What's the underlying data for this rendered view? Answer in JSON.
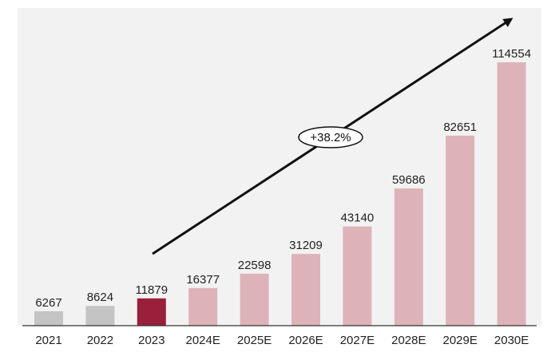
{
  "chart_data": {
    "type": "bar",
    "title": "",
    "xlabel": "",
    "ylabel": "",
    "categories": [
      "2021",
      "2022",
      "2023",
      "2024E",
      "2025E",
      "2026E",
      "2027E",
      "2028E",
      "2029E",
      "2030E"
    ],
    "values": [
      6267,
      8624,
      11879,
      16377,
      22598,
      31209,
      43140,
      59686,
      82651,
      114554
    ],
    "value_labels": [
      "6267",
      "8624",
      "11879",
      "16377",
      "22598",
      "31209",
      "43140",
      "59686",
      "82651",
      "114554"
    ],
    "ylim": [
      0,
      114554
    ],
    "grid": false,
    "legend": "none",
    "bar_colors": [
      "#c4c4c4",
      "#c4c4c4",
      "#9a1f3a",
      "#ddb3b9",
      "#ddb3b9",
      "#ddb3b9",
      "#ddb3b9",
      "#ddb3b9",
      "#ddb3b9",
      "#ddb3b9"
    ],
    "annotation": {
      "text": "+38.2%",
      "arrow": "trend arrow rising from 2023 toward upper right"
    }
  },
  "colors": {
    "background": "#ffffff",
    "plot_background": "#f2f2f2",
    "actual": "#c4c4c4",
    "highlight": "#9a1f3a",
    "forecast": "#ddb3b9",
    "arrow": "#111111"
  }
}
